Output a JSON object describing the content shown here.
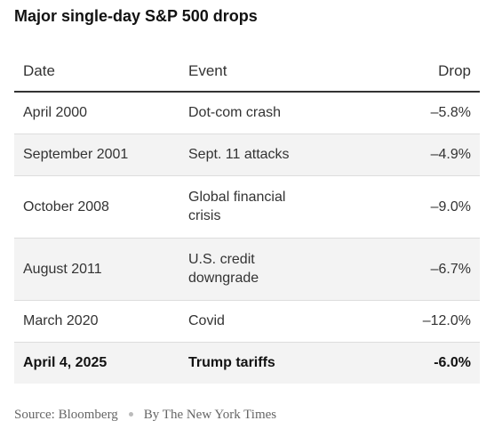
{
  "title": "Major single-day S&P 500 drops",
  "table": {
    "columns": [
      "Date",
      "Event",
      "Drop"
    ],
    "rows": [
      [
        "April 2000",
        "Dot-com crash",
        "–5.8%"
      ],
      [
        "September 2001",
        "Sept. 11 attacks",
        "–4.9%"
      ],
      [
        "October 2008",
        "Global financial crisis",
        "–9.0%"
      ],
      [
        "August 2011",
        "U.S. credit downgrade",
        "–6.7%"
      ],
      [
        "March 2020",
        "Covid",
        "–12.0%"
      ],
      [
        "April 4, 2025",
        "Trump tariffs",
        "-6.0%"
      ]
    ]
  },
  "footer": {
    "source": "Source: Bloomberg",
    "credit": "By The New York Times"
  }
}
